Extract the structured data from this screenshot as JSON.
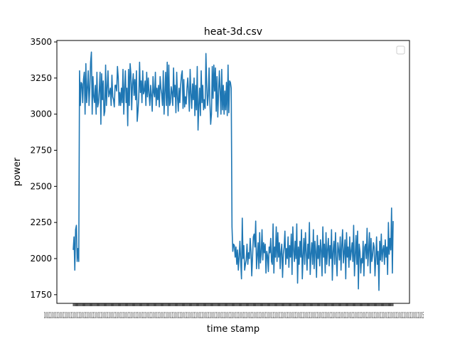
{
  "chart_data": {
    "type": "line",
    "title": "heat-3d.csv",
    "xlabel": "time stamp",
    "ylabel": "power",
    "ylim": [
      1690,
      3510
    ],
    "yticks": [
      1750,
      2000,
      2250,
      2500,
      2750,
      3000,
      3250,
      3500
    ],
    "ytick_labels": [
      "1750",
      "2000",
      "2250",
      "2500",
      "2750",
      "3000",
      "3250",
      "3500"
    ],
    "xtick_label_overlap": "0.0.0.0.0.0.0.0.0.0.0.0.0.0.0.0.0.0.0.0.0.0.0.0.0.0.0.0.0.0.0.0.0.0.0.0.0.0.0.0.0.0.0.0.0.0.0.0.0.0.0.0.0.0.0.0.0.0.0.0.0.0.0.0.0.0.0.0.0.0.0.0.0.0.0.0.0.0.0.0.0.0.0.0.0.0.0.0.0.0.0.0.0.0.0.0.0.0.0.0.0.0.0.0.0.0.0.0.0.0.0.0.0.0.0.0.0.0.0.0.0.0.0.0.0.0.0.0.0.0.0.0.0.0.0.0.0.0.0.0.0.0.0.0.0.0.0.0.0.0.0.0.0.0.0.0.0.0.0.0.0.0.0.0.0.0.0.0.0.0.0.0.0.0.0.0.0.0.0.0.0.0.0.0.0.0.0.0.0.0.0.0.0.0.0.0.0.0.0.0.0.0.0.0.0.0.0.0.0.0.0.0.0.0.0.0.0.0.0.0.0.0.0.0.0.0.0.0.0.0.0.0.0.0.0.0.0.0.0.0.5",
    "legend": {
      "placement": "top-right",
      "entries": []
    },
    "grid": false,
    "series": [
      {
        "name": "power",
        "color": "#1f77b4",
        "values": [
          2060,
          2150,
          1920,
          2200,
          2230,
          1980,
          2070,
          1980,
          3300,
          3060,
          3220,
          3210,
          3080,
          3240,
          3290,
          3000,
          3350,
          3080,
          3180,
          3300,
          3060,
          3180,
          3360,
          3430,
          3000,
          3260,
          3120,
          3080,
          3200,
          3000,
          3290,
          3050,
          3080,
          3170,
          3290,
          2930,
          3280,
          3100,
          3230,
          2990,
          3020,
          3340,
          3060,
          3180,
          3300,
          3120,
          3150,
          3180,
          3060,
          3270,
          3120,
          3100,
          3050,
          3200,
          3200,
          3160,
          3330,
          3250,
          3060,
          3150,
          3060,
          3180,
          3080,
          3310,
          3000,
          3180,
          3300,
          3080,
          3180,
          2920,
          3310,
          3060,
          3350,
          3280,
          3030,
          3210,
          3280,
          3130,
          3240,
          3100,
          3300,
          2950,
          3020,
          3120,
          3360,
          3150,
          3230,
          3080,
          3300,
          3140,
          3160,
          3230,
          3060,
          3290,
          3120,
          3250,
          3140,
          3060,
          3200,
          3130,
          3020,
          3260,
          3150,
          3120,
          3290,
          3060,
          3180,
          3100,
          3200,
          3050,
          3260,
          3180,
          3140,
          3060,
          3300,
          3000,
          3150,
          3290,
          3060,
          3360,
          2990,
          3340,
          3060,
          3080,
          3190,
          3150,
          3060,
          3320,
          3120,
          3200,
          3010,
          3290,
          3120,
          3020,
          3180,
          3080,
          3200,
          3270,
          3300,
          3040,
          3240,
          3050,
          3120,
          3070,
          3180,
          3250,
          3150,
          3020,
          3310,
          3140,
          3040,
          3210,
          3100,
          3250,
          2990,
          3200,
          3030,
          3330,
          2890,
          3060,
          3180,
          2990,
          3300,
          3080,
          3200,
          3030,
          3100,
          3040,
          3420,
          3200,
          3060,
          3130,
          3320,
          3080,
          2930,
          3000,
          3330,
          3110,
          3340,
          3160,
          3320,
          3020,
          3260,
          2980,
          3140,
          3300,
          3160,
          3000,
          3310,
          3030,
          3200,
          3000,
          3160,
          3030,
          3220,
          2990,
          3340,
          3010,
          3230,
          3220,
          3180,
          2220,
          2050,
          2100,
          2090,
          2010,
          2080,
          1960,
          2060,
          1920,
          2010,
          2120,
          1980,
          1860,
          2280,
          2000,
          2090,
          1920,
          1960,
          1990,
          2100,
          1960,
          2040,
          2000,
          2140,
          2050,
          1880,
          2010,
          2150,
          2170,
          2080,
          2260,
          1930,
          2020,
          2110,
          1930,
          2180,
          1970,
          2040,
          2200,
          1990,
          2110,
          2040,
          2100,
          1900,
          2050,
          2020,
          1910,
          2080,
          2040,
          2140,
          1980,
          1960,
          2240,
          1900,
          2080,
          2010,
          2220,
          1980,
          2180,
          2010,
          2110,
          1930,
          2050,
          2100,
          1870,
          2030,
          2080,
          2190,
          1960,
          2070,
          2000,
          2150,
          1940,
          2090,
          2010,
          2170,
          1890,
          2220,
          2060,
          1980,
          2120,
          2000,
          2240,
          1830,
          2080,
          1960,
          2120,
          2010,
          2200,
          1860,
          2020,
          2140,
          1960,
          2180,
          2040,
          1920,
          2100,
          2000,
          2250,
          1890,
          2030,
          2110,
          1960,
          2200,
          1930,
          2120,
          2050,
          1870,
          2160,
          2000,
          2090,
          1950,
          2130,
          2060,
          1880,
          2220,
          2010,
          2100,
          1900,
          2180,
          1960,
          2060,
          2140,
          1950,
          2090,
          2000,
          2200,
          1850,
          2050,
          2120,
          1960,
          2180,
          2010,
          1880,
          2110,
          2060,
          1990,
          2150,
          1920,
          2090,
          2200,
          1970,
          2040,
          2130,
          1860,
          2180,
          2010,
          2080,
          1940,
          2150,
          1990,
          2050,
          2110,
          1980,
          2230,
          1880,
          2020,
          2160,
          1960,
          2190,
          1790,
          2100,
          2050,
          1900,
          2000,
          1970,
          2120,
          1880,
          2080,
          2100,
          2000,
          2210,
          1950,
          2060,
          2180,
          1900,
          2140,
          1980,
          2020,
          2110,
          2080,
          1880,
          2000,
          2150,
          1960,
          2050,
          1780,
          2120,
          1990,
          2170,
          1980,
          2060,
          2090,
          1960,
          2130,
          2010,
          2080,
          1890,
          2250,
          2030,
          2140,
          2060,
          2350,
          1900,
          2260
        ]
      }
    ]
  }
}
